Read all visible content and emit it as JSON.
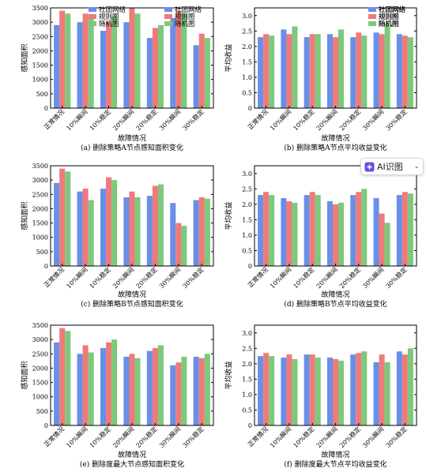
{
  "colors": {
    "social": "#6a8fe6",
    "rule": "#f07a7a",
    "random": "#7cc97c"
  },
  "legend_labels": [
    "社团网络",
    "规则图",
    "随机图"
  ],
  "ai_badge": {
    "label": "AI识图",
    "icon": "sparkle-icon"
  },
  "chart_data": [
    {
      "type": "bar",
      "caption": "(a) 删除策略A节点感知面积变化",
      "xlabel": "故障情况",
      "ylabel": "感知面积",
      "categories": [
        "正常情况",
        "10%瞬间",
        "10%稳定",
        "20%瞬间",
        "20%稳定",
        "30%瞬间",
        "30%稳定"
      ],
      "ylim": [
        0,
        3500
      ],
      "yticks": [
        "0",
        "500",
        "1000",
        "1500",
        "2000",
        "2500",
        "3000",
        "3500"
      ],
      "series": [
        {
          "name": "社团网络",
          "values": [
            2900,
            3000,
            2700,
            3000,
            2450,
            3150,
            2200
          ]
        },
        {
          "name": "规则图",
          "values": [
            3400,
            3300,
            3000,
            3500,
            2800,
            3400,
            2600
          ]
        },
        {
          "name": "随机图",
          "values": [
            3300,
            3250,
            3200,
            3300,
            2900,
            3300,
            2450
          ]
        }
      ],
      "legend": "top-center"
    },
    {
      "type": "bar",
      "caption": "(b) 删除策略A节点平均收益变化",
      "xlabel": "故障情况",
      "ylabel": "平均收益",
      "categories": [
        "正常情况",
        "10%瞬间",
        "10%稳定",
        "20%瞬间",
        "20%稳定",
        "30%瞬间",
        "30%稳定"
      ],
      "ylim": [
        0,
        3.25
      ],
      "yticks": [
        "0",
        "0.5",
        "1.0",
        "1.5",
        "2.0",
        "2.5",
        "3.0"
      ],
      "series": [
        {
          "name": "社团网络",
          "values": [
            2.3,
            2.55,
            2.3,
            2.4,
            2.3,
            2.45,
            2.4
          ]
        },
        {
          "name": "规则图",
          "values": [
            2.4,
            2.4,
            2.4,
            2.3,
            2.45,
            2.4,
            2.35
          ]
        },
        {
          "name": "随机图",
          "values": [
            2.35,
            2.65,
            2.4,
            2.55,
            2.35,
            2.7,
            2.3
          ]
        }
      ],
      "legend": "top-right"
    },
    {
      "type": "bar",
      "caption": "(c) 删除策略B节点感知面积变化",
      "xlabel": "故障情况",
      "ylabel": "感知面积",
      "categories": [
        "正常情况",
        "10%瞬间",
        "10%稳定",
        "20%瞬间",
        "20%稳定",
        "30%瞬间",
        "30%稳定"
      ],
      "ylim": [
        0,
        3500
      ],
      "yticks": [
        "0",
        "500",
        "1000",
        "1500",
        "2000",
        "2500",
        "3000",
        "3500"
      ],
      "series": [
        {
          "name": "社团网络",
          "values": [
            2900,
            2600,
            2700,
            2400,
            2450,
            2200,
            2300
          ]
        },
        {
          "name": "规则图",
          "values": [
            3400,
            2700,
            3100,
            2600,
            2800,
            1500,
            2400
          ]
        },
        {
          "name": "随机图",
          "values": [
            3300,
            2300,
            3000,
            2400,
            2850,
            1400,
            2350
          ]
        }
      ],
      "legend": "top-right"
    },
    {
      "type": "bar",
      "caption": "(d) 删除策略B节点平均收益变化",
      "xlabel": "故障情况",
      "ylabel": "平均收益",
      "categories": [
        "正常情况",
        "10%瞬间",
        "10%稳定",
        "20%瞬间",
        "20%稳定",
        "30%瞬间",
        "30%稳定"
      ],
      "ylim": [
        0,
        3.25
      ],
      "yticks": [
        "0",
        "0.5",
        "1.0",
        "1.5",
        "2.0",
        "2.5",
        "3.0"
      ],
      "series": [
        {
          "name": "社团网络",
          "values": [
            2.3,
            2.2,
            2.3,
            2.1,
            2.3,
            2.2,
            2.3
          ]
        },
        {
          "name": "规则图",
          "values": [
            2.4,
            2.1,
            2.4,
            2.0,
            2.4,
            1.7,
            2.4
          ]
        },
        {
          "name": "随机图",
          "values": [
            2.3,
            2.05,
            2.3,
            2.05,
            2.5,
            1.4,
            2.35
          ]
        }
      ],
      "legend": "top-right"
    },
    {
      "type": "bar",
      "caption": "(e) 删除度最大节点感知面积变化",
      "xlabel": "故障情况",
      "ylabel": "感知面积",
      "categories": [
        "正常情况",
        "10%瞬间",
        "10%稳定",
        "20%瞬间",
        "20%稳定",
        "30%瞬间",
        "30%稳定"
      ],
      "ylim": [
        0,
        3500
      ],
      "yticks": [
        "0",
        "500",
        "1000",
        "1500",
        "2000",
        "2500",
        "3000",
        "3500"
      ],
      "series": [
        {
          "name": "社团网络",
          "values": [
            2900,
            2500,
            2700,
            2400,
            2600,
            2100,
            2400
          ]
        },
        {
          "name": "规则图",
          "values": [
            3400,
            2800,
            2900,
            2500,
            2700,
            2200,
            2350
          ]
        },
        {
          "name": "随机图",
          "values": [
            3300,
            2550,
            3000,
            2350,
            2800,
            2400,
            2500
          ]
        }
      ],
      "legend": "none"
    },
    {
      "type": "bar",
      "caption": "(f) 删除度最大节点平均收益变化",
      "xlabel": "故障情况",
      "ylabel": "平均收益",
      "categories": [
        "正常情况",
        "10%瞬间",
        "10%稳定",
        "20%瞬间",
        "20%稳定",
        "30%瞬间",
        "30%稳定"
      ],
      "ylim": [
        0,
        3.25
      ],
      "yticks": [
        "0",
        "0.5",
        "1.0",
        "1.5",
        "2.0",
        "2.5",
        "3.0"
      ],
      "series": [
        {
          "name": "社团网络",
          "values": [
            2.25,
            2.2,
            2.3,
            2.2,
            2.3,
            2.05,
            2.4
          ]
        },
        {
          "name": "规则图",
          "values": [
            2.35,
            2.3,
            2.3,
            2.15,
            2.35,
            2.3,
            2.3
          ]
        },
        {
          "name": "随机图",
          "values": [
            2.25,
            2.15,
            2.2,
            2.1,
            2.4,
            2.05,
            2.5
          ]
        }
      ],
      "legend": "top-right"
    }
  ]
}
